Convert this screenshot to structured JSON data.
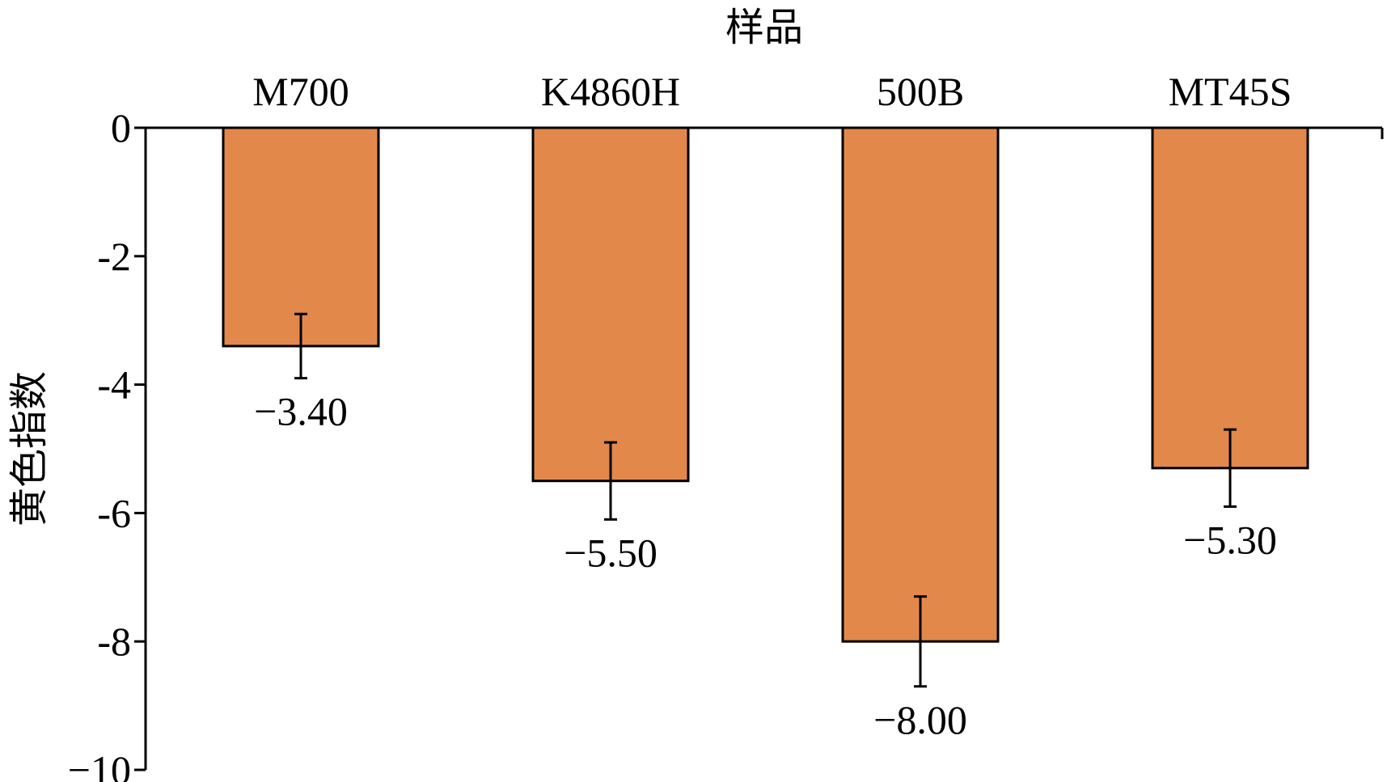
{
  "chart_data": {
    "type": "bar",
    "xlabel": "样品",
    "ylabel": "黄色指数",
    "categories": [
      "M700",
      "K4860H",
      "500B",
      "MT45S"
    ],
    "values": [
      -3.4,
      -5.5,
      -8.0,
      -5.3
    ],
    "value_labels": [
      "−3.40",
      "−5.50",
      "−8.00",
      "−5.30"
    ],
    "error_low": [
      -3.9,
      -6.1,
      -8.7,
      -5.9
    ],
    "error_high": [
      -2.9,
      -4.9,
      -7.3,
      -4.7
    ],
    "ylim": [
      -10,
      0
    ],
    "yticks": [
      0,
      -2,
      -4,
      -6,
      -8,
      -10
    ],
    "ytick_labels": [
      "0",
      "-2",
      "-4",
      "-6",
      "-8",
      "−10"
    ],
    "x_axis_position": "top",
    "grid": false,
    "bar_color": "#E3884B"
  }
}
